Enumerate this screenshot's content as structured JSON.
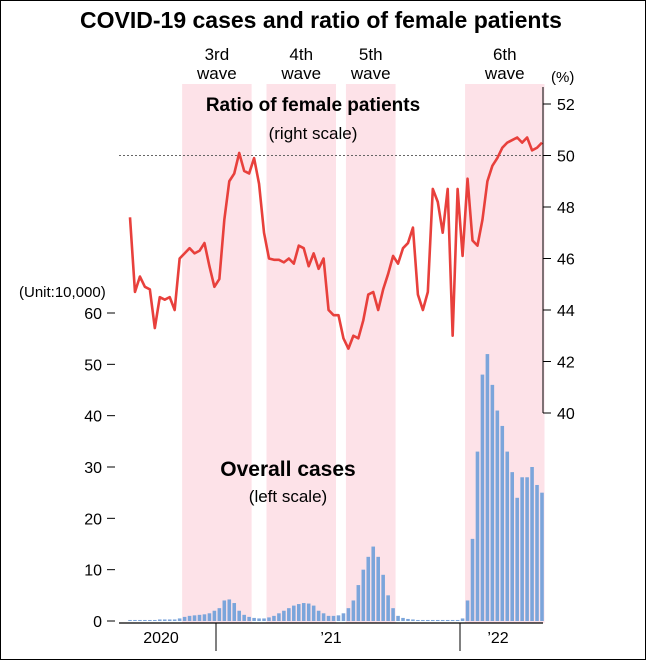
{
  "chart_data": {
    "type": "bar+line",
    "title": "COVID-19 cases and ratio of female patients",
    "waves": [
      {
        "line1": "3rd",
        "line2": "wave",
        "start_week": 11,
        "end_week": 24
      },
      {
        "line1": "4th",
        "line2": "wave",
        "start_week": 28,
        "end_week": 41
      },
      {
        "line1": "5th",
        "line2": "wave",
        "start_week": 44,
        "end_week": 53
      },
      {
        "line1": "6th",
        "line2": "wave",
        "start_week": 68,
        "end_week": 83
      }
    ],
    "bar_series": {
      "name": "Overall cases",
      "note": "(left scale)",
      "unit_label": "(Unit:10,000)",
      "axis": "left",
      "ylim": [
        0,
        60
      ],
      "yticks": [
        0,
        10,
        20,
        30,
        40,
        50,
        60
      ],
      "values": [
        0.2,
        0.2,
        0.2,
        0.2,
        0.2,
        0.2,
        0.3,
        0.3,
        0.3,
        0.3,
        0.5,
        0.8,
        1.0,
        1.1,
        1.2,
        1.3,
        1.5,
        2.0,
        2.5,
        4.0,
        4.2,
        3.5,
        2.0,
        1.2,
        0.8,
        0.6,
        0.5,
        0.5,
        0.7,
        1.0,
        1.5,
        2.0,
        2.5,
        3.0,
        3.3,
        3.5,
        3.4,
        3.0,
        2.0,
        1.5,
        1.0,
        1.0,
        1.1,
        1.5,
        2.5,
        4.0,
        7.0,
        10.0,
        12.5,
        14.5,
        12.5,
        9.0,
        5.0,
        2.5,
        1.0,
        0.6,
        0.4,
        0.3,
        0.2,
        0.2,
        0.2,
        0.2,
        0.2,
        0.2,
        0.2,
        0.2,
        0.2,
        0.5,
        4.0,
        16.0,
        33.0,
        48.0,
        52.0,
        46.0,
        41.0,
        38.0,
        33.0,
        29.0,
        24.0,
        28.0,
        28.0,
        30.0,
        26.5,
        25.0
      ]
    },
    "line_series": {
      "name": "Ratio of female patients",
      "note": "(right scale)",
      "unit_label": "(%)",
      "axis": "right",
      "ylim": [
        40,
        52
      ],
      "yticks": [
        40,
        42,
        44,
        46,
        48,
        50,
        52
      ],
      "reference_line": 50,
      "values": [
        47.6,
        44.7,
        45.3,
        44.9,
        44.8,
        43.3,
        44.5,
        44.4,
        44.5,
        44.0,
        46.0,
        46.2,
        46.4,
        46.2,
        46.3,
        46.6,
        45.7,
        44.9,
        45.2,
        47.5,
        49.0,
        49.3,
        50.1,
        49.4,
        49.3,
        49.9,
        48.9,
        47.0,
        46.0,
        45.95,
        45.95,
        45.85,
        46.0,
        45.8,
        46.5,
        46.4,
        45.7,
        46.2,
        45.6,
        46.0,
        44.0,
        43.8,
        43.8,
        42.9,
        42.5,
        43.0,
        42.9,
        43.6,
        44.6,
        44.7,
        44.0,
        44.8,
        45.4,
        46.1,
        45.8,
        46.4,
        46.6,
        47.2,
        44.6,
        44.0,
        44.7,
        48.7,
        48.2,
        47.0,
        48.7,
        43.0,
        48.7,
        46.1,
        49.1,
        46.7,
        46.5,
        47.5,
        49.0,
        49.6,
        49.9,
        50.3,
        50.5,
        50.6,
        50.7,
        50.5,
        50.7,
        50.2,
        50.3,
        50.5
      ]
    },
    "x_labels": [
      "2020",
      "’21",
      "’22"
    ],
    "colors": {
      "bar": "#7ba5db",
      "line": "#e8403c",
      "wave_band": "#fde2e8",
      "reference": "#666666",
      "axis": "#000000"
    }
  }
}
